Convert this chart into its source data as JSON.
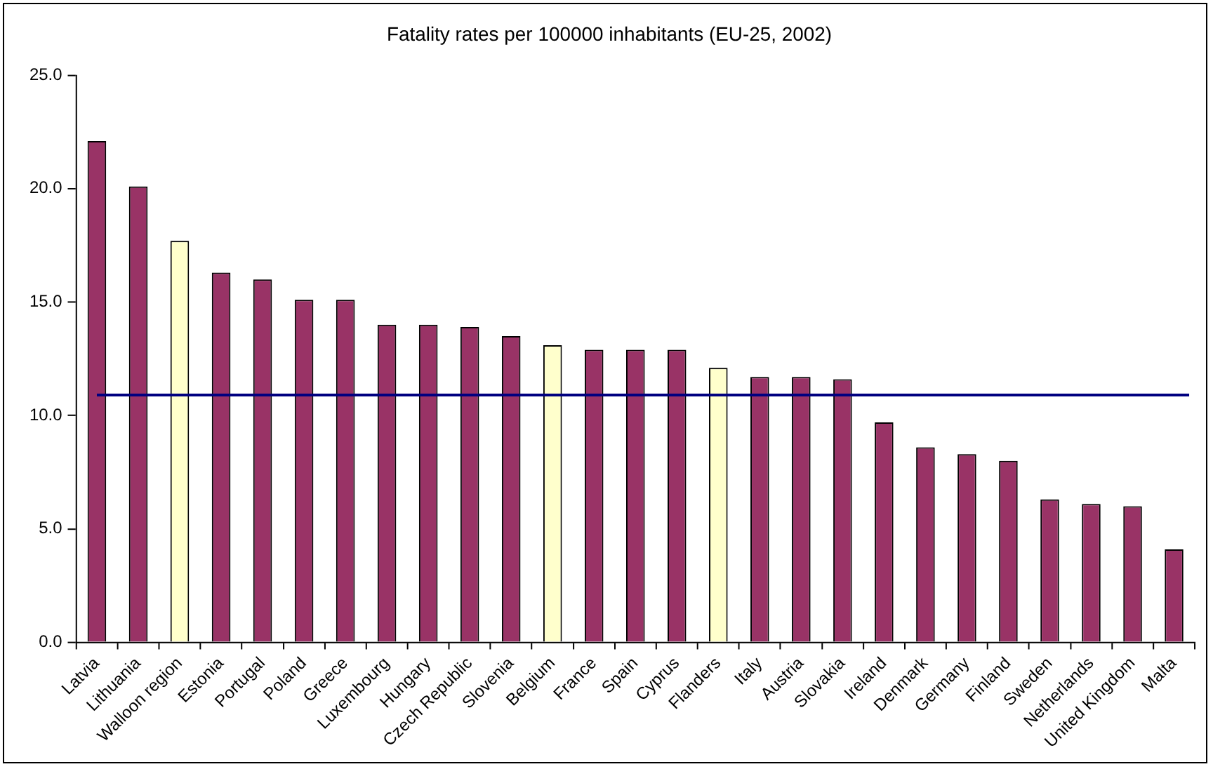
{
  "chart_data": {
    "type": "bar",
    "title": "Fatality rates per 100000 inhabitants (EU-25, 2002)",
    "categories": [
      "Latvia",
      "Lithuania",
      "Walloon region",
      "Estonia",
      "Portugal",
      "Poland",
      "Greece",
      "Luxembourg",
      "Hungary",
      "Czech Republic",
      "Slovenia",
      "Belgium",
      "France",
      "Spain",
      "Cyprus",
      "Flanders",
      "Italy",
      "Austria",
      "Slovakia",
      "Ireland",
      "Denmark",
      "Germany",
      "Finland",
      "Sweden",
      "Netherlands",
      "United Kingdom",
      "Malta"
    ],
    "values": [
      22.1,
      20.1,
      17.7,
      16.3,
      16.0,
      15.1,
      15.1,
      14.0,
      14.0,
      13.9,
      13.5,
      13.1,
      12.9,
      12.9,
      12.9,
      12.1,
      11.7,
      11.7,
      11.6,
      9.7,
      8.6,
      8.3,
      8.0,
      6.3,
      6.1,
      6.0,
      4.1
    ],
    "colors": [
      "#993366",
      "#993366",
      "#ffffcc",
      "#993366",
      "#993366",
      "#993366",
      "#993366",
      "#993366",
      "#993366",
      "#993366",
      "#993366",
      "#ffffcc",
      "#993366",
      "#993366",
      "#993366",
      "#ffffcc",
      "#993366",
      "#993366",
      "#993366",
      "#993366",
      "#993366",
      "#993366",
      "#993366",
      "#993366",
      "#993366",
      "#993366",
      "#993366"
    ],
    "ylim": [
      0,
      25
    ],
    "yticks": [
      {
        "value": 0,
        "label": "0.0"
      },
      {
        "value": 5,
        "label": "5.0"
      },
      {
        "value": 10,
        "label": "10.0"
      },
      {
        "value": 15,
        "label": "15.0"
      },
      {
        "value": 20,
        "label": "20.0"
      },
      {
        "value": 25,
        "label": "25.0"
      }
    ],
    "ref_lines": [
      {
        "axis": "y",
        "value": 10.9,
        "color": "#000080"
      }
    ],
    "grid": false,
    "legend": false
  }
}
